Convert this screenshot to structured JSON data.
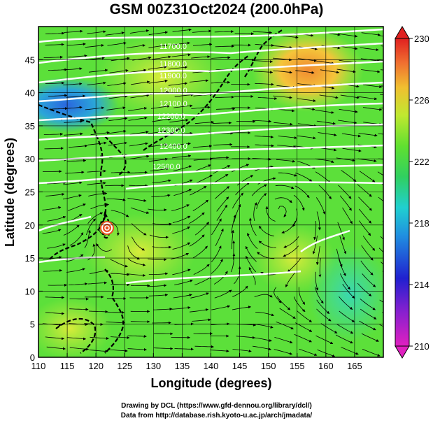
{
  "title": "GSM 00Z31Oct2024 (200.0hPa)",
  "x_axis": {
    "label": "Longitude (degrees)",
    "ticks": [
      "110",
      "115",
      "120",
      "125",
      "130",
      "135",
      "140",
      "145",
      "150",
      "155",
      "160",
      "165"
    ]
  },
  "y_axis": {
    "label": "Latitude  (degrees)",
    "ticks": [
      "0",
      "5",
      "10",
      "15",
      "20",
      "25",
      "30",
      "35",
      "40",
      "45"
    ]
  },
  "colorbar": {
    "ticks": [
      "210",
      "214",
      "218",
      "222",
      "226",
      "230"
    ],
    "min": 210,
    "max": 230
  },
  "contour_labels": [
    "11700.0",
    "11800.0",
    "11900.0",
    "12000.0",
    "12100.0",
    "12200.0",
    "12300.0",
    "12400.0",
    "12500.0"
  ],
  "credits": {
    "line1": "Drawing by DCL (https://www.gfd-dennou.org/library/dcl/)",
    "line2": "Data from http://database.rish.kyoto-u.ac.jp/arch/jmadata/"
  },
  "colors": {
    "frame": "#000000",
    "contour": "#ffffff",
    "coast": "#000000",
    "base_field": "#5ce03a"
  }
}
